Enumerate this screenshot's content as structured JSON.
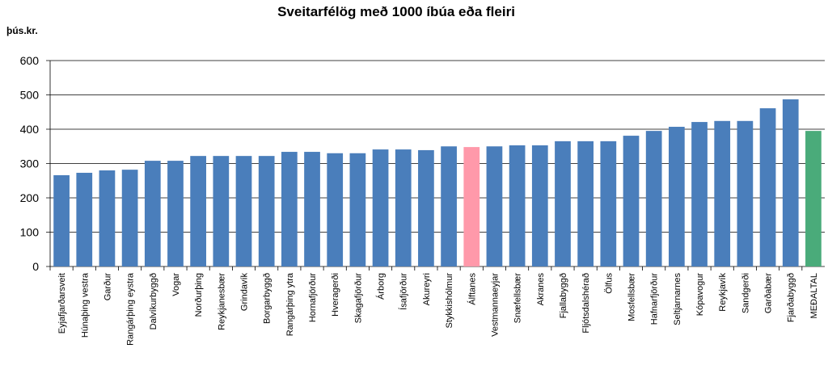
{
  "chart_data": {
    "type": "bar",
    "title": "Sveitarfélög með 1000 íbúa eða fleiri",
    "y_label": "þús.kr.",
    "categories": [
      "Eyjafjarðarsveit",
      "Húnaþing vestra",
      "Garður",
      "Rangárþing eystra",
      "Dalvíkurbyggð",
      "Vogar",
      "Norðurþing",
      "Reykjanesbær",
      "Grindavík",
      "Borgarbyggð",
      "Rangárþing ytra",
      "Hornafjörður",
      "Hveragerði",
      "Skagafjörður",
      "Árborg",
      "Ísafjörður",
      "Akureyri",
      "Stykkishólmur",
      "Álftanes",
      "Vestmannaeyjar",
      "Snæfellsbær",
      "Akranes",
      "Fjallabyggð",
      "Fljótsdalshérað",
      "Ölfus",
      "Mosfellsbær",
      "Hafnarfjörður",
      "Seltjarnarnes",
      "Kópavogur",
      "Reykjavík",
      "Sandgerði",
      "Garðabær",
      "Fjarðabyggð",
      "MEÐALTAL"
    ],
    "values": [
      266,
      273,
      280,
      282,
      308,
      308,
      322,
      322,
      322,
      322,
      334,
      334,
      330,
      330,
      341,
      341,
      339,
      350,
      348,
      350,
      353,
      353,
      365,
      365,
      365,
      381,
      395,
      407,
      421,
      424,
      424,
      461,
      487,
      395
    ],
    "colors": [
      "#4a7ebb",
      "#4a7ebb",
      "#4a7ebb",
      "#4a7ebb",
      "#4a7ebb",
      "#4a7ebb",
      "#4a7ebb",
      "#4a7ebb",
      "#4a7ebb",
      "#4a7ebb",
      "#4a7ebb",
      "#4a7ebb",
      "#4a7ebb",
      "#4a7ebb",
      "#4a7ebb",
      "#4a7ebb",
      "#4a7ebb",
      "#4a7ebb",
      "#ff99aa",
      "#4a7ebb",
      "#4a7ebb",
      "#4a7ebb",
      "#4a7ebb",
      "#4a7ebb",
      "#4a7ebb",
      "#4a7ebb",
      "#4a7ebb",
      "#4a7ebb",
      "#4a7ebb",
      "#4a7ebb",
      "#4a7ebb",
      "#4a7ebb",
      "#4a7ebb",
      "#4aab7a"
    ],
    "ylim": [
      0,
      600
    ],
    "yticks": [
      0,
      100,
      200,
      300,
      400,
      500,
      600
    ],
    "grid": true
  }
}
